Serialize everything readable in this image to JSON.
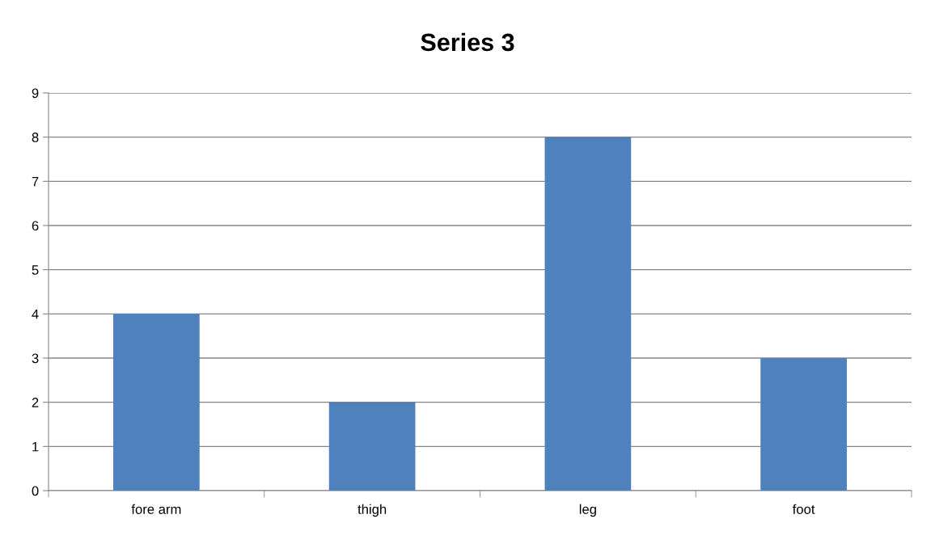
{
  "chart_data": {
    "type": "bar",
    "title": "Series 3",
    "categories": [
      "fore arm",
      "thigh",
      "leg",
      "foot"
    ],
    "values": [
      4,
      2,
      8,
      3
    ],
    "color": "#4f81bd",
    "ylim": [
      0,
      9
    ],
    "yticks": [
      0,
      1,
      2,
      3,
      4,
      5,
      6,
      7,
      8,
      9
    ],
    "grid": "y",
    "legend": false
  }
}
